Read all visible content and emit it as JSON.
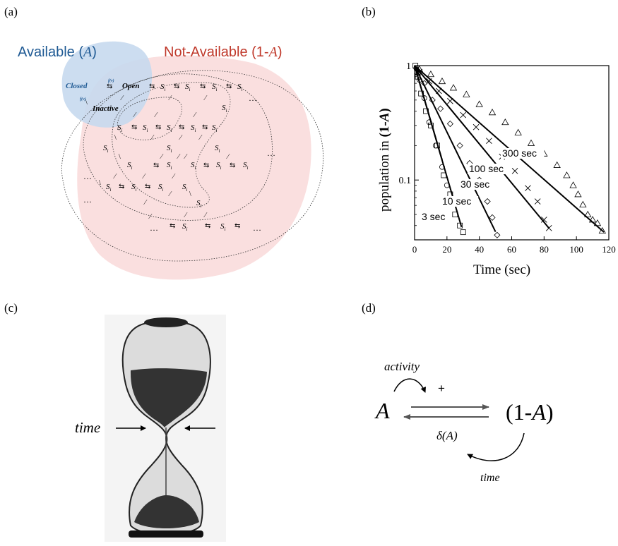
{
  "panels": {
    "a": {
      "label": "(a)",
      "available_label": "Available (",
      "available_var": "A",
      "available_close": ")",
      "notavail_label": "Not-Available (1-",
      "notavail_var": "A",
      "notavail_close": ")",
      "closed": "Closed",
      "open": "Open",
      "inactive": "Inactive",
      "fv": "f(v)",
      "s": "S",
      "sub": "i",
      "ellipsis": "…",
      "colors": {
        "available": "#1f5a94",
        "not_available": "#c0392b",
        "blue_fill": "#c6d9ee",
        "red_fill": "#f9dcdc"
      }
    },
    "b": {
      "label": "(b)"
    },
    "c": {
      "label": "(c)",
      "time": "time"
    },
    "d": {
      "label": "(d)",
      "A": "A",
      "oneMinusA": "(1-A)",
      "activity": "activity",
      "plus": "+",
      "delta": "δ(A)",
      "time": "time"
    }
  },
  "chart_data": {
    "type": "scatter",
    "xlabel": "Time (sec)",
    "ylabel": "population in (1-A)",
    "xlim": [
      0,
      120
    ],
    "ylim": [
      0.03,
      1
    ],
    "yscale": "log",
    "xticks": [
      0,
      20,
      40,
      60,
      80,
      100,
      120
    ],
    "yticks": [
      {
        "value": 1,
        "label": "1"
      },
      {
        "value": 0.1,
        "label": "0.1"
      }
    ],
    "series": [
      {
        "name": "3 sec",
        "marker": "square",
        "line_end_x": 17,
        "points": [
          [
            0.5,
            1
          ],
          [
            2,
            0.8
          ],
          [
            4,
            0.57
          ],
          [
            7,
            0.4
          ],
          [
            10,
            0.3
          ],
          [
            14,
            0.2
          ],
          [
            18,
            0.11
          ],
          [
            22,
            0.075
          ],
          [
            25,
            0.05
          ],
          [
            28,
            0.04
          ],
          [
            30,
            0.035
          ]
        ]
      },
      {
        "name": "10 sec",
        "marker": "circle",
        "line_end_x": 29,
        "points": [
          [
            1,
            0.95
          ],
          [
            3,
            0.75
          ],
          [
            6,
            0.52
          ],
          [
            9,
            0.32
          ],
          [
            13,
            0.2
          ],
          [
            17,
            0.13
          ],
          [
            20,
            0.09
          ],
          [
            24,
            0.068
          ]
        ]
      },
      {
        "name": "30 sec",
        "marker": "diamond",
        "line_end_x": 50,
        "points": [
          [
            2,
            0.85
          ],
          [
            6,
            0.7
          ],
          [
            11,
            0.5
          ],
          [
            16,
            0.42
          ],
          [
            22,
            0.31
          ],
          [
            28,
            0.2
          ],
          [
            34,
            0.14
          ],
          [
            40,
            0.1
          ],
          [
            45,
            0.065
          ],
          [
            48,
            0.047
          ],
          [
            51,
            0.033
          ]
        ]
      },
      {
        "name": "100 sec",
        "marker": "cross",
        "line_end_x": 83,
        "points": [
          [
            3,
            0.88
          ],
          [
            9,
            0.73
          ],
          [
            15,
            0.6
          ],
          [
            22,
            0.49
          ],
          [
            30,
            0.37
          ],
          [
            38,
            0.29
          ],
          [
            46,
            0.22
          ],
          [
            54,
            0.16
          ],
          [
            62,
            0.12
          ],
          [
            70,
            0.085
          ],
          [
            76,
            0.065
          ],
          [
            80,
            0.045
          ],
          [
            83,
            0.038
          ]
        ]
      },
      {
        "name": "300 sec",
        "marker": "triangle",
        "line_end_x": 117,
        "points": [
          [
            3,
            0.93
          ],
          [
            10,
            0.84
          ],
          [
            17,
            0.73
          ],
          [
            24,
            0.64
          ],
          [
            32,
            0.56
          ],
          [
            40,
            0.46
          ],
          [
            48,
            0.39
          ],
          [
            56,
            0.32
          ],
          [
            64,
            0.26
          ],
          [
            72,
            0.21
          ],
          [
            80,
            0.17
          ],
          [
            88,
            0.135
          ],
          [
            94,
            0.11
          ],
          [
            98,
            0.09
          ],
          [
            101,
            0.075
          ],
          [
            104,
            0.061
          ],
          [
            107,
            0.05
          ],
          [
            110,
            0.045
          ],
          [
            113,
            0.042
          ],
          [
            116,
            0.036
          ]
        ]
      }
    ]
  }
}
